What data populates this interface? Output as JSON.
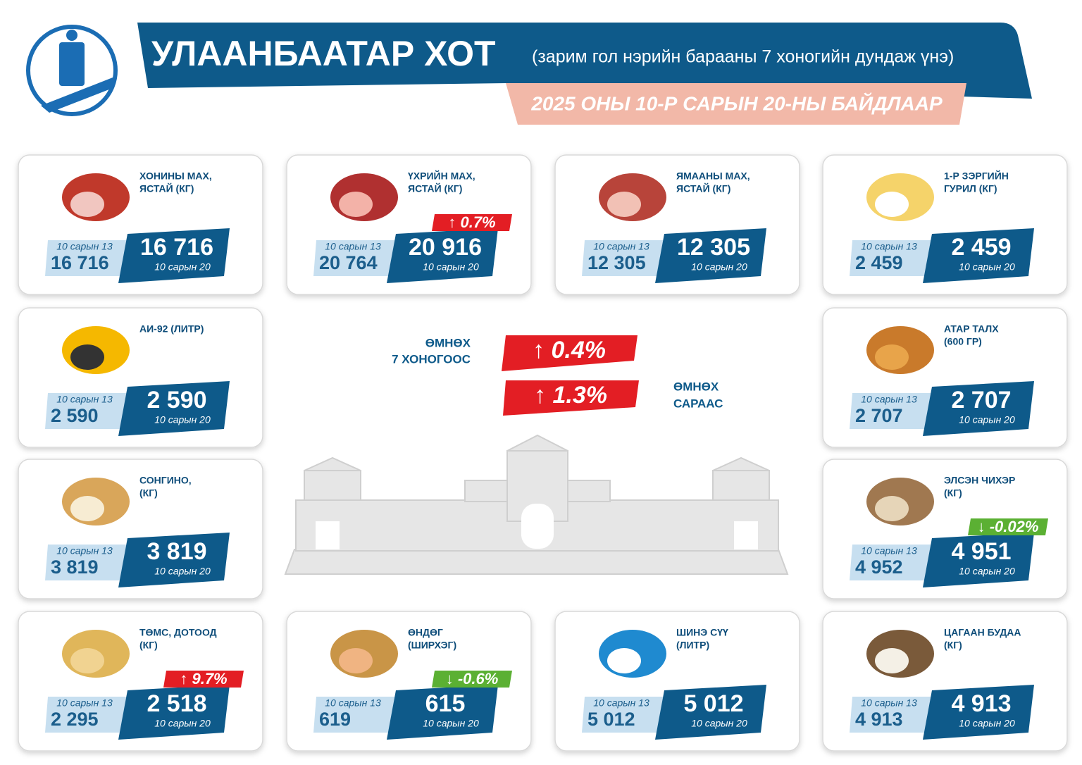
{
  "header": {
    "title": "УЛААНБААТАР ХОТ",
    "subtitle": "(зарим гол нэрийн барааны 7 хоногийн дундаж үнэ)",
    "date": "2025 ОНЫ 10-Р САРЫН 20-НЫ БАЙДЛААР"
  },
  "summary": {
    "weekly_label": [
      "ӨМНӨХ",
      "7 ХОНОГООС"
    ],
    "weekly_change": "↑ 0.4%",
    "monthly_label": [
      "ӨМНӨХ",
      "САРААС"
    ],
    "monthly_change": "↑ 1.3%"
  },
  "items": [
    {
      "name": [
        "ХОНИНЫ МАХ,",
        "ЯСТАЙ (КГ)"
      ],
      "prev_date": "10 сарын 13",
      "prev": "16 716",
      "current": "16 716",
      "current_date": "10 сарын 20"
    },
    {
      "name": [
        "ҮХРИЙН МАХ,",
        "ЯСТАЙ (КГ)"
      ],
      "prev_date": "10 сарын 13",
      "prev": "20 764",
      "current": "20 916",
      "current_date": "10 сарын 20",
      "change": "↑ 0.7%"
    },
    {
      "name": [
        "ЯМААНЫ МАХ,",
        "ЯСТАЙ (КГ)"
      ],
      "prev_date": "10 сарын 13",
      "prev": "12 305",
      "current": "12 305",
      "current_date": "10 сарын 20"
    },
    {
      "name": [
        "1-Р ЗЭРГИЙН",
        "ГУРИЛ (КГ)"
      ],
      "prev_date": "10 сарын 13",
      "prev": "2 459",
      "current": "2 459",
      "current_date": "10 сарын 20"
    },
    {
      "name": [
        "АИ-92 (ЛИТР)"
      ],
      "prev_date": "10 сарын 13",
      "prev": "2 590",
      "current": "2 590",
      "current_date": "10 сарын 20"
    },
    {
      "name": [
        "АТАР ТАЛХ",
        "(600 ГР)"
      ],
      "prev_date": "10 сарын 13",
      "prev": "2 707",
      "current": "2 707",
      "current_date": "10 сарын 20"
    },
    {
      "name": [
        "СОНГИНО,",
        "(КГ)"
      ],
      "prev_date": "10 сарын 13",
      "prev": "3 819",
      "current": "3 819",
      "current_date": "10 сарын 20"
    },
    {
      "name": [
        "ЭЛСЭН ЧИХЭР",
        "(КГ)"
      ],
      "prev_date": "10 сарын 13",
      "prev": "4 952",
      "current": "4 951",
      "current_date": "10 сарын 20",
      "change": "↓ -0.02%"
    },
    {
      "name": [
        "ТӨМС, ДОТООД",
        "(КГ)"
      ],
      "prev_date": "10 сарын 13",
      "prev": "2 295",
      "current": "2 518",
      "current_date": "10 сарын 20",
      "change": "↑ 9.7%"
    },
    {
      "name": [
        "ӨНДӨГ",
        "(ШИРХЭГ)"
      ],
      "prev_date": "10 сарын 13",
      "prev": "619",
      "current": "615",
      "current_date": "10 сарын 20",
      "change": "↓ -0.6%"
    },
    {
      "name": [
        "ШИНЭ СҮҮ",
        "(ЛИТР)"
      ],
      "prev_date": "10 сарын 13",
      "prev": "5 012",
      "current": "5 012",
      "current_date": "10 сарын 20"
    },
    {
      "name": [
        "ЦАГААН БУДАА",
        "(КГ)"
      ],
      "prev_date": "10 сарын 13",
      "prev": "4 913",
      "current": "4 913",
      "current_date": "10 сарын 20"
    }
  ]
}
